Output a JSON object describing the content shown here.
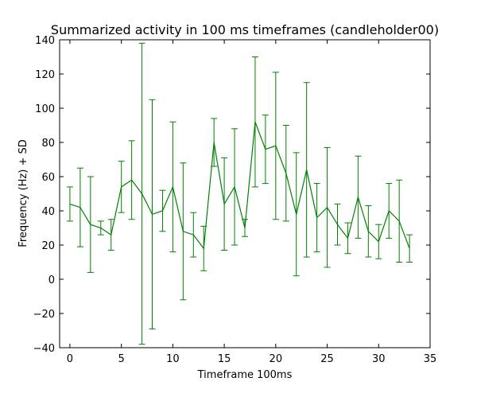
{
  "chart_data": {
    "type": "line",
    "title": "Summarized activity in 100 ms timeframes (candleholder00)",
    "xlabel": "Timeframe 100ms",
    "ylabel": "Frequency (Hz) + SD",
    "xlim": [
      -1,
      35
    ],
    "ylim": [
      -40,
      140
    ],
    "xticks": [
      0,
      5,
      10,
      15,
      20,
      25,
      30,
      35
    ],
    "yticks": [
      -40,
      -20,
      0,
      20,
      40,
      60,
      80,
      100,
      120,
      140
    ],
    "grid": false,
    "series_color": "#008000",
    "x": [
      0,
      1,
      2,
      3,
      4,
      5,
      6,
      7,
      8,
      9,
      10,
      11,
      12,
      13,
      14,
      15,
      16,
      17,
      18,
      19,
      20,
      21,
      22,
      23,
      24,
      25,
      26,
      27,
      28,
      29,
      30,
      31,
      32,
      33
    ],
    "y": [
      44,
      42,
      32,
      30,
      26,
      54,
      58,
      50,
      38,
      40,
      54,
      28,
      26,
      18,
      80,
      44,
      54,
      30,
      92,
      76,
      78,
      62,
      38,
      64,
      36,
      42,
      32,
      24,
      48,
      28,
      22,
      40,
      34,
      18
    ],
    "sd": [
      10,
      23,
      28,
      4,
      9,
      15,
      23,
      88,
      67,
      12,
      38,
      40,
      13,
      13,
      14,
      27,
      34,
      5,
      38,
      20,
      43,
      28,
      36,
      51,
      20,
      35,
      12,
      9,
      24,
      15,
      10,
      16,
      24,
      8
    ]
  }
}
